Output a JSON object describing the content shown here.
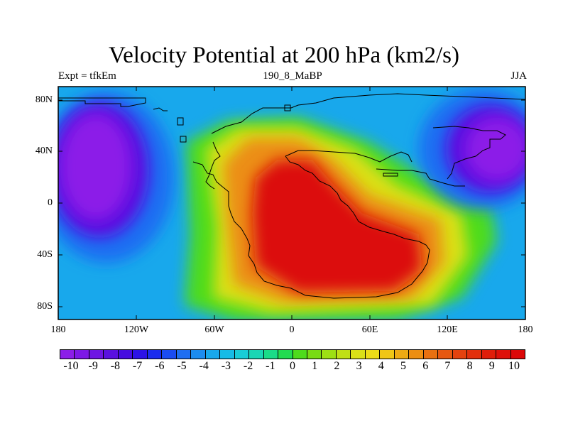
{
  "title": "Velocity Potential at 200 hPa (km2/s)",
  "left_label": "Expt = tfkEm",
  "center_label": "190_8_MaBP",
  "right_label": "JJA",
  "map": {
    "lat_range": [
      -90,
      90
    ],
    "lon_range": [
      -180,
      180
    ],
    "lat_ticks": [
      "80N",
      "40N",
      "0",
      "40S",
      "80S"
    ],
    "lat_tick_values": [
      80,
      40,
      0,
      -40,
      -80
    ],
    "lon_ticks": [
      "180",
      "120W",
      "60W",
      "0",
      "60E",
      "120E",
      "180"
    ],
    "lon_tick_values": [
      -180,
      -120,
      -60,
      0,
      60,
      120,
      180
    ],
    "field": "velocity potential",
    "units": "km2/s",
    "min_center": {
      "lon": -150,
      "lat": 20,
      "value": -10
    },
    "min_center_2": {
      "lon": 150,
      "lat": 35,
      "value": -10
    },
    "max_center": {
      "lon": 30,
      "lat": -30,
      "value": 10
    }
  },
  "colorbar": {
    "labels": [
      "-10",
      "-9",
      "-8",
      "-7",
      "-6",
      "-5",
      "-4",
      "-3",
      "-2",
      "-1",
      "0",
      "1",
      "2",
      "3",
      "4",
      "5",
      "6",
      "7",
      "8",
      "9",
      "10"
    ],
    "colors": [
      "#8c1ee8",
      "#7d19e6",
      "#6e15e3",
      "#5a10e0",
      "#460ce0",
      "#2c12e6",
      "#1a2cee",
      "#1a4cf2",
      "#1e6ef2",
      "#1c8cf0",
      "#18a8ec",
      "#16bce6",
      "#18ccd6",
      "#1ad6b4",
      "#1adc88",
      "#22dc50",
      "#4edc1c",
      "#78dc14",
      "#9ee014",
      "#c0e016",
      "#dae018",
      "#ecdc18",
      "#f0c616",
      "#eeaa14",
      "#ec8e12",
      "#e87010",
      "#e65810",
      "#e4420e",
      "#e2300c",
      "#e01e0a",
      "#de100a",
      "#dc0808"
    ]
  }
}
